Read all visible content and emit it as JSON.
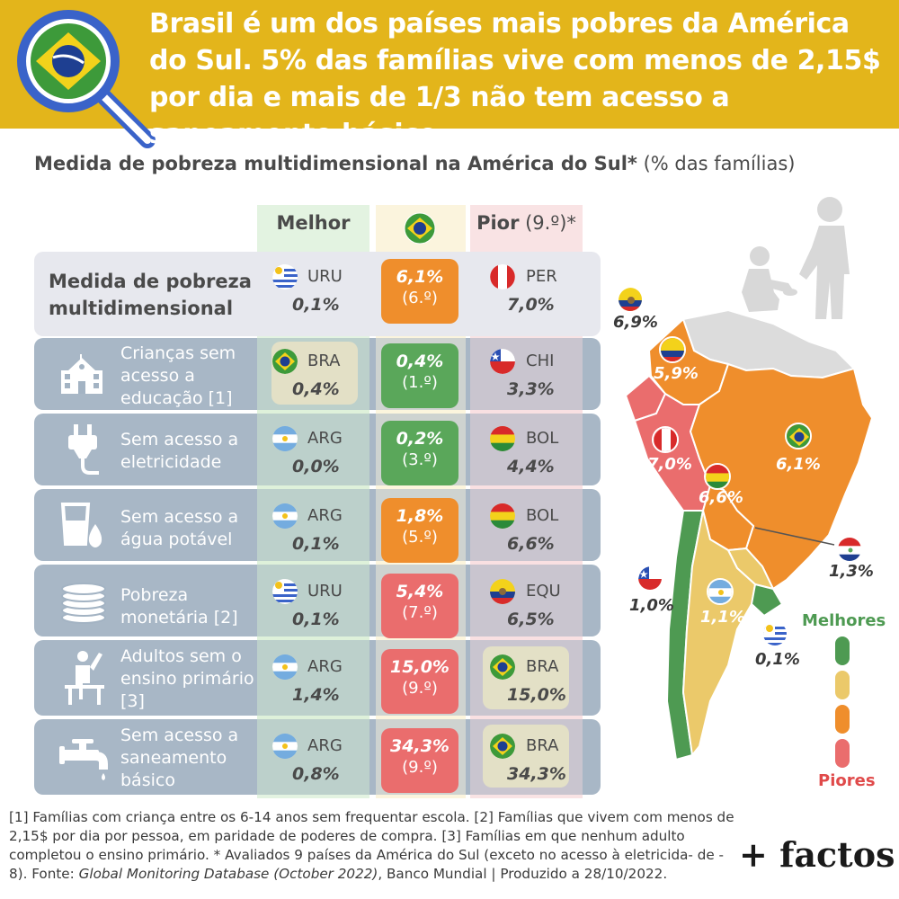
{
  "header": {
    "title": "Brasil é um dos países mais pobres da América do Sul. 5% das famílias vive com menos de 2,15$ por dia e mais de 1/3 não tem acesso a saneamento básico."
  },
  "subtitle": {
    "bold": "Medida de pobreza multidimensional na América do Sul*",
    "normal": " (% das famílias)"
  },
  "columns": {
    "best": "Melhor",
    "worst": "Pior",
    "worst_note": " (9.º)*"
  },
  "colors": {
    "orange": "#ef8e2c",
    "green": "#5aa75a",
    "red": "#ea6d6d",
    "yellow": "#ebc96a",
    "darkgreen": "#4e9a52"
  },
  "rows": [
    {
      "label": "Medida de pobreza multidimensional",
      "icon": "",
      "best": {
        "code": "URU",
        "value": "0,1%"
      },
      "brazil": {
        "value": "6,1%",
        "rank": "(6.º)",
        "color": "orange"
      },
      "worst": {
        "code": "PER",
        "value": "7,0%"
      }
    },
    {
      "label": "Crianças sem acesso a educação [1]",
      "icon": "school-icon",
      "best": {
        "code": "BRA",
        "value": "0,4%"
      },
      "brazil": {
        "value": "0,4%",
        "rank": "(1.º)",
        "color": "green"
      },
      "worst": {
        "code": "CHI",
        "value": "3,3%"
      }
    },
    {
      "label": "Sem acesso a eletricidade",
      "icon": "plug-icon",
      "best": {
        "code": "ARG",
        "value": "0,0%"
      },
      "brazil": {
        "value": "0,2%",
        "rank": "(3.º)",
        "color": "green"
      },
      "worst": {
        "code": "BOL",
        "value": "4,4%"
      }
    },
    {
      "label": "Sem acesso a água potável",
      "icon": "water-icon",
      "best": {
        "code": "ARG",
        "value": "0,1%"
      },
      "brazil": {
        "value": "1,8%",
        "rank": "(5.º)",
        "color": "orange"
      },
      "worst": {
        "code": "BOL",
        "value": "6,6%"
      }
    },
    {
      "label": "Pobreza monetária [2]",
      "icon": "coins-icon",
      "best": {
        "code": "URU",
        "value": "0,1%"
      },
      "brazil": {
        "value": "5,4%",
        "rank": "(7.º)",
        "color": "red"
      },
      "worst": {
        "code": "EQU",
        "value": "6,5%"
      }
    },
    {
      "label": "Adultos sem o ensino primário [3]",
      "icon": "student-icon",
      "best": {
        "code": "ARG",
        "value": "1,4%"
      },
      "brazil": {
        "value": "15,0%",
        "rank": "(9.º)",
        "color": "red"
      },
      "worst": {
        "code": "BRA",
        "value": "15,0%"
      }
    },
    {
      "label": "Sem acesso a saneamento básico",
      "icon": "faucet-icon",
      "best": {
        "code": "ARG",
        "value": "0,8%"
      },
      "brazil": {
        "value": "34,3%",
        "rank": "(9.º)",
        "color": "red"
      },
      "worst": {
        "code": "BRA",
        "value": "34,3%"
      }
    }
  ],
  "map": {
    "labels": [
      {
        "country": "Equador",
        "value": "6,9%"
      },
      {
        "country": "Colômbia",
        "value": "5,9%"
      },
      {
        "country": "Peru",
        "value": "7,0%"
      },
      {
        "country": "Brasil",
        "value": "6,1%"
      },
      {
        "country": "Bolívia",
        "value": "6,6%"
      },
      {
        "country": "Paraguai",
        "value": "1,3%"
      },
      {
        "country": "Chile",
        "value": "1,0%"
      },
      {
        "country": "Argentina",
        "value": "1,1%"
      },
      {
        "country": "Uruguai",
        "value": "0,1%"
      }
    ],
    "legend": {
      "best": "Melhores",
      "worst": "Piores"
    }
  },
  "footnote": {
    "text1": "[1] Famílias com criança entre os 6-14 anos sem frequentar escola. [2] Famílias que vivem com menos de 2,15$ por dia por pessoa, em paridade de poderes de compra. [3] Famílias em que nenhum adulto completou o ensino primário. * Avaliados 9 países da América do Sul (exceto no acesso à eletricida- de - 8). Fonte: ",
    "source_italic": "Global Monitoring Database (October 2022)",
    "text2": ", Banco Mundial | Produzido a 28/10/2022."
  },
  "brand": "+ factos"
}
